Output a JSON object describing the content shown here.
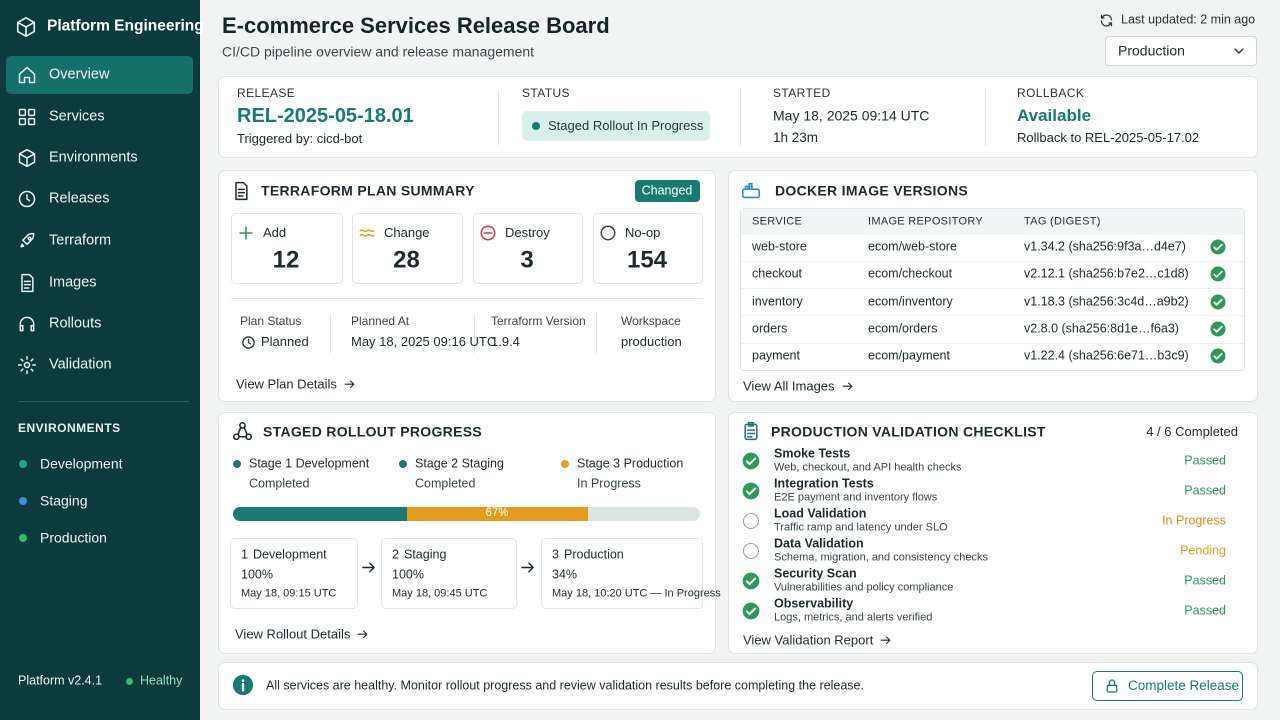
{
  "sidebar": {
    "brand": "Platform Engineering",
    "nav": [
      "Overview",
      "Services",
      "Environments",
      "Releases",
      "Terraform",
      "Images",
      "Rollouts",
      "Validation"
    ],
    "env_heading": "ENVIRONMENTS",
    "environments": [
      {
        "name": "Development",
        "color": "#2aa38f"
      },
      {
        "name": "Staging",
        "color": "#3b8ee0"
      },
      {
        "name": "Production",
        "color": "#37b86a"
      }
    ],
    "version": "Platform v2.4.1",
    "health": "Healthy"
  },
  "header": {
    "title": "E-commerce Services Release Board",
    "subtitle": "CI/CD pipeline overview and release management",
    "last_updated": "Last updated: 2 min ago",
    "environment_select": "Production"
  },
  "release": {
    "label": "RELEASE",
    "id": "REL-2025-05-18.01",
    "triggered_by": "Triggered by: cicd-bot",
    "status_label": "STATUS",
    "status": "Staged Rollout In Progress",
    "started_label": "STARTED",
    "started": "May 18, 2025 09:14 UTC",
    "duration": "1h 23m",
    "rollback_label": "ROLLBACK",
    "rollback": "Available",
    "rollback_target": "Rollback to REL-2025-05-17.02"
  },
  "terraform": {
    "title": "TERRAFORM PLAN SUMMARY",
    "badge": "Changed",
    "counts": [
      {
        "label": "Add",
        "value": 12
      },
      {
        "label": "Change",
        "value": 28
      },
      {
        "label": "Destroy",
        "value": 3
      },
      {
        "label": "No-op",
        "value": 154
      }
    ],
    "fields": [
      {
        "label": "Plan Status",
        "value": "Planned"
      },
      {
        "label": "Planned At",
        "value": "May 18, 2025 09:16 UTC"
      },
      {
        "label": "Terraform Version",
        "value": "1.9.4"
      },
      {
        "label": "Workspace",
        "value": "production"
      }
    ],
    "link": "View Plan Details"
  },
  "docker": {
    "title": "DOCKER IMAGE VERSIONS",
    "columns": [
      "SERVICE",
      "IMAGE REPOSITORY",
      "TAG (DIGEST)"
    ],
    "rows": [
      [
        "web-store",
        "ecom/web-store",
        "v1.34.2 (sha256:9f3a…d4e7)"
      ],
      [
        "checkout",
        "ecom/checkout",
        "v2.12.1 (sha256:b7e2…c1d8)"
      ],
      [
        "inventory",
        "ecom/inventory",
        "v1.18.3 (sha256:3c4d…a9b2)"
      ],
      [
        "orders",
        "ecom/orders",
        "v2.8.0 (sha256:8d1e…f6a3)"
      ],
      [
        "payment",
        "ecom/payment",
        "v1.22.4 (sha256:6e71…b3c9)"
      ]
    ],
    "link": "View All Images"
  },
  "rollout": {
    "title": "STAGED ROLLOUT PROGRESS",
    "stages": [
      {
        "name": "Stage 1 Development",
        "state": "Completed",
        "color": "#187a70"
      },
      {
        "name": "Stage 2 Staging",
        "state": "Completed",
        "color": "#187a70"
      },
      {
        "name": "Stage 3 Production",
        "state": "In Progress",
        "color": "#e3a020"
      }
    ],
    "progress": "67%",
    "steps": [
      {
        "index": "1",
        "name": "Development",
        "percent": "100%",
        "time": "May 18, 09:15 UTC"
      },
      {
        "index": "2",
        "name": "Staging",
        "percent": "100%",
        "time": "May 18, 09:45 UTC"
      },
      {
        "index": "3",
        "name": "Production",
        "percent": "34%",
        "time": "May 18, 10:20 UTC — In Progress"
      }
    ],
    "link": "View Rollout Details"
  },
  "validation": {
    "title": "PRODUCTION VALIDATION CHECKLIST",
    "summary": "4 / 6 Completed",
    "items": [
      {
        "name": "Smoke Tests",
        "desc": "Web, checkout, and API health checks",
        "status": "Passed",
        "color": "#2e9a5a",
        "checked": true
      },
      {
        "name": "Integration Tests",
        "desc": "E2E payment and inventory flows",
        "status": "Passed",
        "color": "#2e9a5a",
        "checked": true
      },
      {
        "name": "Load Validation",
        "desc": "Traffic ramp and latency under SLO",
        "status": "In Progress",
        "color": "#e08a17",
        "checked": false
      },
      {
        "name": "Data Validation",
        "desc": "Schema, migration, and consistency checks",
        "status": "Pending",
        "color": "#e0a020",
        "checked": false
      },
      {
        "name": "Security Scan",
        "desc": "Vulnerabilities and policy compliance",
        "status": "Passed",
        "color": "#2e9a5a",
        "checked": true
      },
      {
        "name": "Observability",
        "desc": "Logs, metrics, and alerts verified",
        "status": "Passed",
        "color": "#2e9a5a",
        "checked": true
      }
    ],
    "link": "View Validation Report"
  },
  "footer": {
    "message": "All services are healthy. Monitor rollout progress and review validation results before completing the release.",
    "button": "Complete Release"
  }
}
